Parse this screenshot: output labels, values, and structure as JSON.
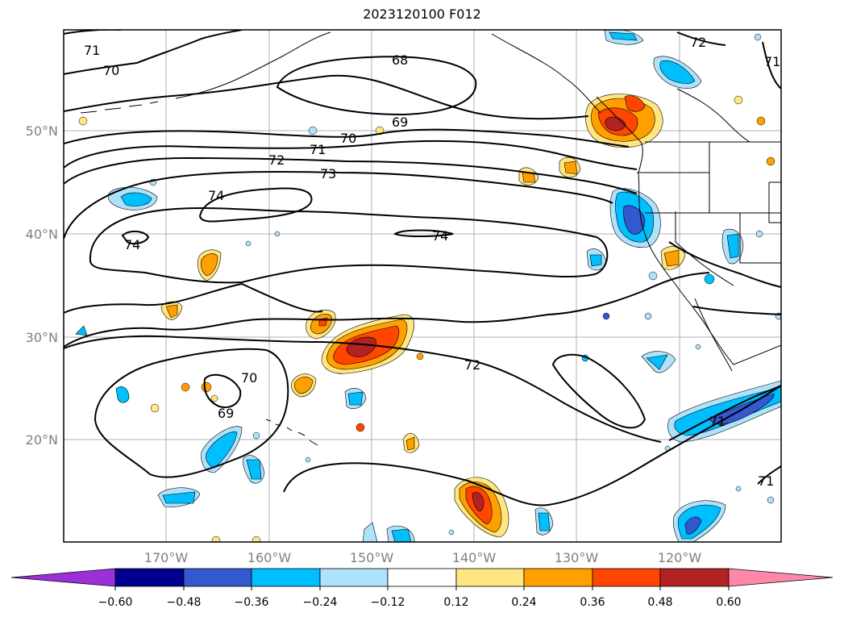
{
  "title": "2023120100 F012",
  "map": {
    "lat_labels": [
      "50°N",
      "40°N",
      "30°N",
      "20°N"
    ],
    "lon_labels": [
      "170°W",
      "160°W",
      "150°W",
      "140°W",
      "130°W",
      "120°W"
    ],
    "contour_labels": [
      "71",
      "70",
      "68",
      "72",
      "71",
      "69",
      "70",
      "71",
      "72",
      "73",
      "74",
      "74",
      "74",
      "70",
      "69",
      "72",
      "71",
      "71"
    ],
    "contour_color": "#000000",
    "coastline_color": "#000000",
    "grid_color": "#b0b0b0"
  },
  "colorbar": {
    "tick_labels": [
      "−0.60",
      "−0.48",
      "−0.36",
      "−0.24",
      "−0.12",
      "0.12",
      "0.24",
      "0.36",
      "0.48",
      "0.60"
    ],
    "colors": [
      "#9b30d9",
      "#000090",
      "#3458d0",
      "#00bfff",
      "#aee2fa",
      "#ffffff",
      "#ffe680",
      "#ffa000",
      "#ff4500",
      "#b22222",
      "#ff88aa"
    ],
    "extend": "both"
  },
  "shading_colors": {
    "blue_light": "#aee2fa",
    "blue": "#00bfff",
    "blue_dark": "#3458d0",
    "yellow": "#ffe680",
    "orange": "#ffa000",
    "red_orange": "#ff4500",
    "dark_red": "#b22222"
  }
}
